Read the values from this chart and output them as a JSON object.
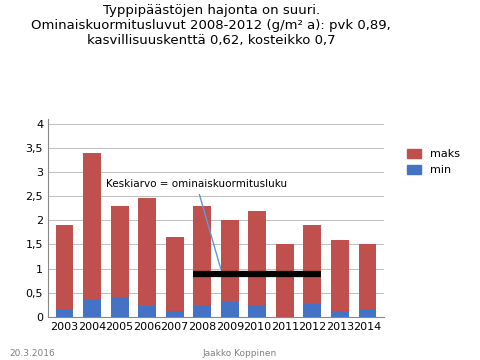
{
  "years": [
    2003,
    2004,
    2005,
    2006,
    2007,
    2008,
    2009,
    2010,
    2011,
    2012,
    2013,
    2014
  ],
  "maks_total": [
    1.9,
    3.4,
    2.3,
    2.45,
    1.65,
    2.3,
    2.0,
    2.2,
    1.5,
    1.9,
    1.6,
    1.5
  ],
  "min_values": [
    0.15,
    0.35,
    0.4,
    0.22,
    0.12,
    0.25,
    0.3,
    0.25,
    0.0,
    0.27,
    0.13,
    0.17
  ],
  "bar_color_maks": "#C0504D",
  "bar_color_min": "#4472C4",
  "mean_line_y": 0.89,
  "annotation_text": "Keskiarvo = ominaiskuormitusluku",
  "title_line1": "Typpipäästöjen hajonta on suuri.",
  "title_line2": "Ominaiskuormitusluvut 2008-2012 (g/m² a): pvk 0,89,",
  "title_line3": "kasvillisuuskenttä 0,62, kosteikko 0,7",
  "ylabel_ticks": [
    0,
    0.5,
    1.0,
    1.5,
    2.0,
    2.5,
    3.0,
    3.5,
    4.0
  ],
  "tick_labels": [
    "0",
    "0,5",
    "1",
    "1,5",
    "2",
    "2,5",
    "3",
    "3,5",
    "4"
  ],
  "ylim": [
    0,
    4.1
  ],
  "footer_left": "20.3.2016",
  "footer_center": "Jaakko Koppinen",
  "background_color": "#FFFFFF",
  "grid_color": "#BEBEBE",
  "title_fontsize": 9.5,
  "legend_fontsize": 8,
  "tick_fontsize": 8,
  "footer_fontsize": 6.5
}
